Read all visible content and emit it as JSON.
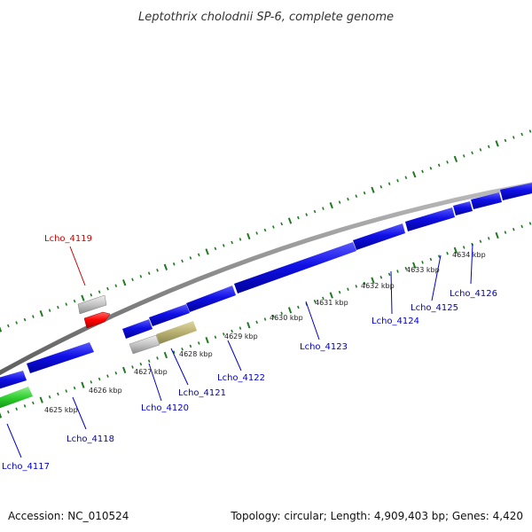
{
  "header": {
    "title": "Leptothrix cholodnii SP-6, complete genome"
  },
  "footer": {
    "accession": "Accession: NC_010524",
    "summary": "Topology: circular; Length: 4,909,403 bp; Genes: 4,420"
  },
  "colors": {
    "backbone": "#8a8a8a",
    "cds": "#1010e6",
    "highlight": "#ff0000",
    "rna": "#c0c0c0",
    "pseudo": "#b8b070",
    "green": "#2ecc2e",
    "tick": "#1e7a1e",
    "label_blue": "#0000cc",
    "label_red": "#cc0000"
  },
  "kbp_ticks": [
    {
      "label": "4625 kbp"
    },
    {
      "label": "4626 kbp"
    },
    {
      "label": "4627 kbp"
    },
    {
      "label": "4628 kbp"
    },
    {
      "label": "4629 kbp"
    },
    {
      "label": "4630 kbp"
    },
    {
      "label": "4631 kbp"
    },
    {
      "label": "4632 kbp"
    },
    {
      "label": "4633 kbp"
    },
    {
      "label": "4634 kbp"
    }
  ],
  "gene_labels": [
    {
      "text": "Lcho_4117",
      "color": "label_blue"
    },
    {
      "text": "Lcho_4118",
      "color": "label_blue"
    },
    {
      "text": "Lcho_4119",
      "color": "label_red"
    },
    {
      "text": "Lcho_4120",
      "color": "label_blue"
    },
    {
      "text": "Lcho_4121",
      "color": "label_blue"
    },
    {
      "text": "Lcho_4122",
      "color": "label_blue"
    },
    {
      "text": "Lcho_4123",
      "color": "label_blue"
    },
    {
      "text": "Lcho_4124",
      "color": "label_blue"
    },
    {
      "text": "Lcho_4125",
      "color": "label_blue"
    },
    {
      "text": "Lcho_4126",
      "color": "label_blue"
    }
  ]
}
